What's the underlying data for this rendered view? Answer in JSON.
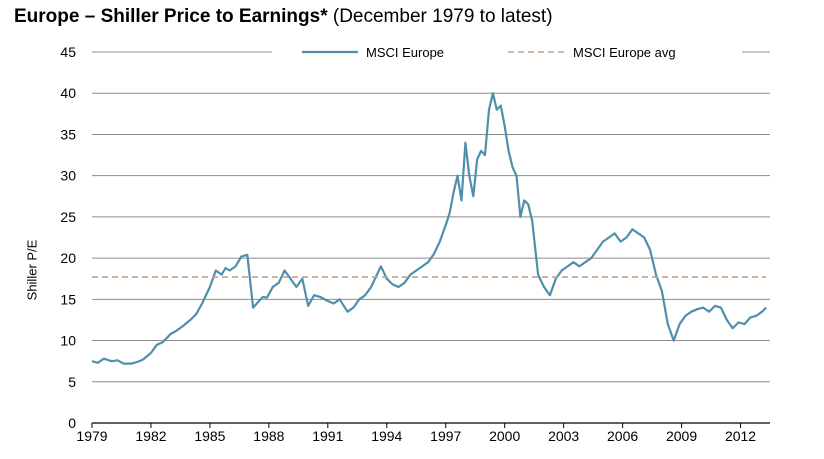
{
  "chart_data": {
    "type": "line",
    "title": "Europe – Shiller Price to Earnings*",
    "subtitle": "(December 1979 to latest)",
    "xlabel": "",
    "ylabel": "Shiller P/E",
    "ylim": [
      0,
      45
    ],
    "xlim": [
      1979,
      2013.5
    ],
    "yticks": [
      0,
      5,
      10,
      15,
      20,
      25,
      30,
      35,
      40,
      45
    ],
    "xticks": [
      "1979",
      "1982",
      "1985",
      "1988",
      "1991",
      "1994",
      "1997",
      "2000",
      "2003",
      "2006",
      "2009",
      "2012"
    ],
    "grid": true,
    "legend_position": "top",
    "colors": {
      "series": "#4f8fac",
      "average": "#c9a080",
      "grid": "#8c8c8c"
    },
    "series": [
      {
        "name": "MSCI Europe",
        "x": [
          1979.0,
          1979.3,
          1979.6,
          1980.0,
          1980.3,
          1980.6,
          1981.0,
          1981.3,
          1981.6,
          1982.0,
          1982.3,
          1982.6,
          1983.0,
          1983.3,
          1983.6,
          1984.0,
          1984.3,
          1984.6,
          1985.0,
          1985.3,
          1985.6,
          1985.8,
          1986.0,
          1986.3,
          1986.6,
          1986.9,
          1987.2,
          1987.5,
          1987.7,
          1987.9,
          1988.2,
          1988.5,
          1988.8,
          1989.1,
          1989.4,
          1989.7,
          1990.0,
          1990.3,
          1990.6,
          1991.0,
          1991.3,
          1991.6,
          1992.0,
          1992.3,
          1992.6,
          1992.9,
          1993.2,
          1993.4,
          1993.7,
          1994.0,
          1994.3,
          1994.6,
          1994.9,
          1995.2,
          1995.5,
          1995.8,
          1996.1,
          1996.4,
          1996.7,
          1997.0,
          1997.2,
          1997.4,
          1997.6,
          1997.8,
          1998.0,
          1998.2,
          1998.4,
          1998.6,
          1998.8,
          1999.0,
          1999.2,
          1999.4,
          1999.6,
          1999.8,
          2000.0,
          2000.2,
          2000.4,
          2000.6,
          2000.8,
          2001.0,
          2001.2,
          2001.4,
          2001.7,
          2002.0,
          2002.3,
          2002.6,
          2002.9,
          2003.2,
          2003.5,
          2003.8,
          2004.1,
          2004.4,
          2004.7,
          2005.0,
          2005.3,
          2005.6,
          2005.9,
          2006.2,
          2006.5,
          2006.8,
          2007.1,
          2007.4,
          2007.7,
          2008.0,
          2008.3,
          2008.6,
          2008.9,
          2009.2,
          2009.5,
          2009.8,
          2010.1,
          2010.4,
          2010.7,
          2011.0,
          2011.3,
          2011.6,
          2011.9,
          2012.2,
          2012.5,
          2012.8,
          2013.1,
          2013.3
        ],
        "values": [
          7.5,
          7.3,
          7.8,
          7.5,
          7.6,
          7.2,
          7.2,
          7.4,
          7.7,
          8.5,
          9.5,
          9.8,
          10.8,
          11.2,
          11.7,
          12.5,
          13.2,
          14.5,
          16.5,
          18.5,
          18.0,
          18.8,
          18.5,
          19.0,
          20.2,
          20.4,
          14.0,
          14.8,
          15.3,
          15.2,
          16.5,
          17.0,
          18.5,
          17.5,
          16.5,
          17.5,
          14.2,
          15.5,
          15.3,
          14.8,
          14.5,
          15.0,
          13.5,
          14.0,
          15.0,
          15.5,
          16.5,
          17.5,
          19.0,
          17.5,
          16.8,
          16.5,
          17.0,
          18.0,
          18.5,
          19.0,
          19.5,
          20.5,
          22.0,
          24.0,
          25.5,
          28.0,
          30.0,
          27.0,
          34.0,
          30.0,
          27.5,
          32.0,
          33.0,
          32.5,
          38.0,
          40.0,
          38.0,
          38.5,
          36.0,
          33.0,
          31.0,
          30.0,
          25.0,
          27.0,
          26.5,
          24.5,
          18.0,
          16.5,
          15.5,
          17.5,
          18.5,
          19.0,
          19.5,
          19.0,
          19.5,
          20.0,
          21.0,
          22.0,
          22.5,
          23.0,
          22.0,
          22.5,
          23.5,
          23.0,
          22.5,
          21.0,
          18.0,
          16.0,
          12.0,
          10.0,
          12.0,
          13.0,
          13.5,
          13.8,
          14.0,
          13.5,
          14.2,
          14.0,
          12.5,
          11.5,
          12.2,
          12.0,
          12.8,
          13.0,
          13.5,
          14.0
        ]
      },
      {
        "name": "MSCI Europe avg",
        "x": [
          1979.0,
          2013.3
        ],
        "values": [
          17.7,
          17.7
        ],
        "style": "dashed"
      }
    ]
  }
}
